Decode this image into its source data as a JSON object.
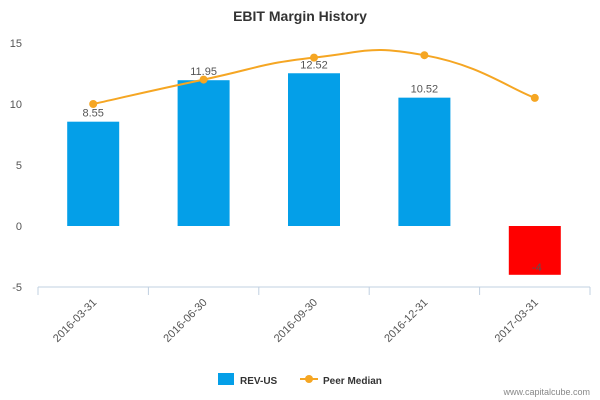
{
  "chart_data": {
    "type": "bar",
    "title": "EBIT Margin History",
    "categories": [
      "2016-03-31",
      "2016-06-30",
      "2016-09-30",
      "2016-12-31",
      "2017-03-31"
    ],
    "series": [
      {
        "name": "REV-US",
        "type": "bar",
        "values": [
          8.55,
          11.95,
          12.52,
          10.52,
          -4
        ],
        "data_labels": [
          "8.55",
          "11.95",
          "12.52",
          "10.52",
          "-4"
        ],
        "color": "#049fe8",
        "negative_color": "#ff0000"
      },
      {
        "name": "Peer Median",
        "type": "line",
        "values": [
          10.0,
          12.0,
          13.8,
          14.0,
          10.5
        ],
        "color": "#f5a623"
      }
    ],
    "ylim": [
      -5,
      15
    ],
    "yticks": [
      "-5",
      "0",
      "5",
      "10",
      "15"
    ],
    "grid": false,
    "legend": "bottom-center"
  },
  "credit": "www.capitalcube.com"
}
